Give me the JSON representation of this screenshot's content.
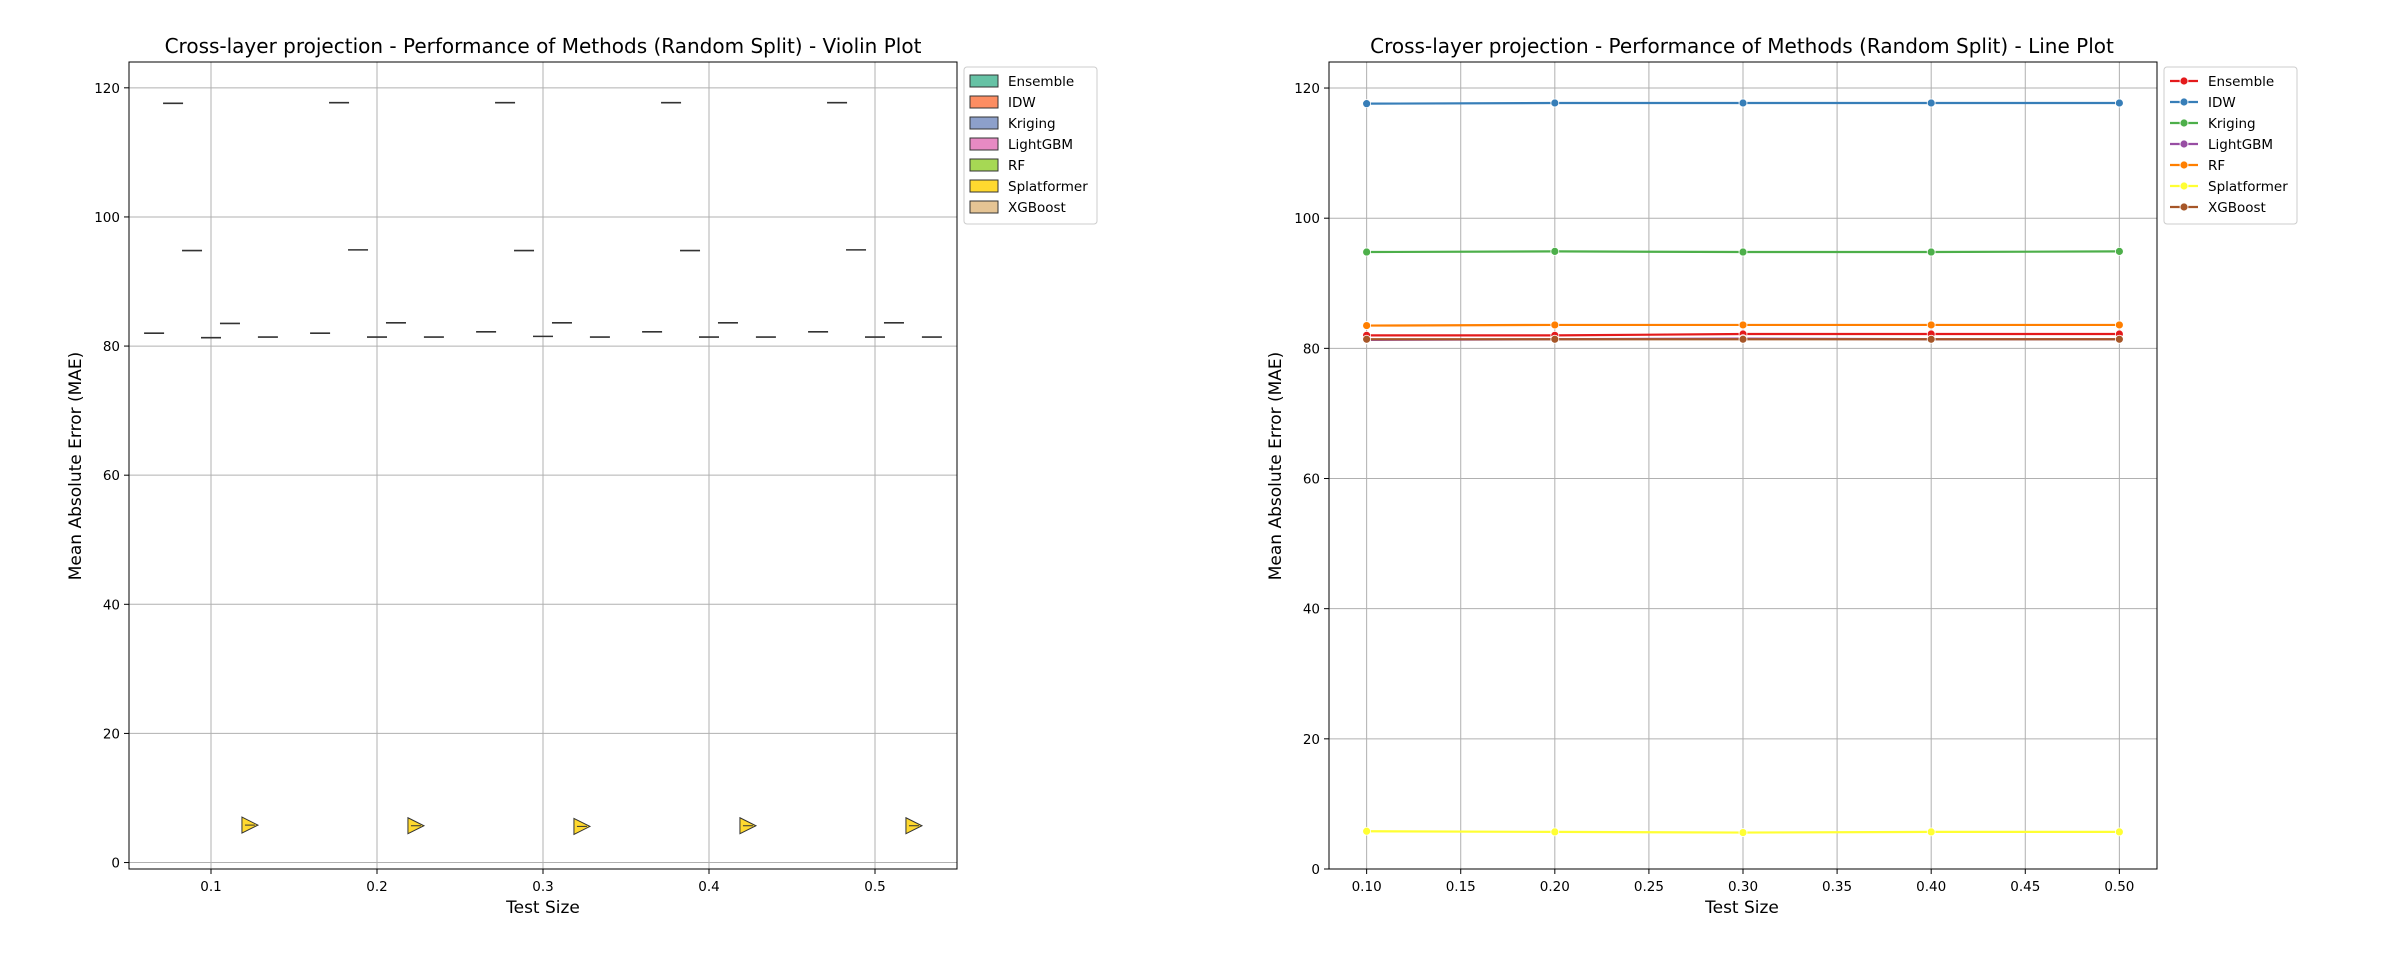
{
  "charts": [
    {
      "type": "violin",
      "title": "Cross-layer projection - Performance of Methods (Random Split) - Violin Plot",
      "xlabel": "Test Size",
      "ylabel": "Mean Absolute Error (MAE)",
      "categories": [
        "0.1",
        "0.2",
        "0.3",
        "0.4",
        "0.5"
      ],
      "xticks": [
        "0.1",
        "0.2",
        "0.3",
        "0.4",
        "0.5"
      ],
      "yticks": [
        "0",
        "20",
        "40",
        "60",
        "80",
        "100",
        "120"
      ],
      "ylim": [
        -1,
        124
      ],
      "grid": true,
      "legend_position": "outside-top-right",
      "series": [
        {
          "name": "Ensemble",
          "color": "#66c2a5",
          "values": [
            82.0,
            82.0,
            82.2,
            82.2,
            82.2
          ]
        },
        {
          "name": "IDW",
          "color": "#fc8d62",
          "values": [
            117.6,
            117.7,
            117.7,
            117.7,
            117.7
          ]
        },
        {
          "name": "Kriging",
          "color": "#8da0cb",
          "values": [
            94.8,
            94.9,
            94.8,
            94.8,
            94.9
          ]
        },
        {
          "name": "LightGBM",
          "color": "#e78ac3",
          "values": [
            81.3,
            81.4,
            81.5,
            81.4,
            81.4
          ]
        },
        {
          "name": "RF",
          "color": "#a6d854",
          "values": [
            83.5,
            83.6,
            83.6,
            83.6,
            83.6
          ]
        },
        {
          "name": "Splatformer",
          "color": "#ffd92f",
          "values": [
            5.8,
            5.7,
            5.6,
            5.7,
            5.7
          ]
        },
        {
          "name": "XGBoost",
          "color": "#e5c494",
          "values": [
            81.4,
            81.4,
            81.4,
            81.4,
            81.4
          ]
        }
      ]
    },
    {
      "type": "line",
      "title": "Cross-layer projection - Performance of Methods (Random Split) - Line Plot",
      "xlabel": "Test Size",
      "ylabel": "Mean Absolute Error (MAE)",
      "x": [
        0.1,
        0.2,
        0.3,
        0.4,
        0.5
      ],
      "xticks": [
        "0.10",
        "0.15",
        "0.20",
        "0.25",
        "0.30",
        "0.35",
        "0.40",
        "0.45",
        "0.50"
      ],
      "yticks": [
        "0",
        "20",
        "40",
        "60",
        "80",
        "100",
        "120"
      ],
      "xlim": [
        0.08,
        0.52
      ],
      "ylim": [
        0,
        124
      ],
      "grid": true,
      "legend_position": "outside-top-right",
      "series": [
        {
          "name": "Ensemble",
          "color": "#e41a1c",
          "values": [
            82.0,
            82.0,
            82.2,
            82.2,
            82.2
          ]
        },
        {
          "name": "IDW",
          "color": "#377eb8",
          "values": [
            117.6,
            117.7,
            117.7,
            117.7,
            117.7
          ]
        },
        {
          "name": "Kriging",
          "color": "#4daf4a",
          "values": [
            94.8,
            94.9,
            94.8,
            94.8,
            94.9
          ]
        },
        {
          "name": "LightGBM",
          "color": "#984ea3",
          "values": [
            81.3,
            81.4,
            81.5,
            81.4,
            81.4
          ]
        },
        {
          "name": "RF",
          "color": "#ff7f00",
          "values": [
            83.5,
            83.6,
            83.6,
            83.6,
            83.6
          ]
        },
        {
          "name": "Splatformer",
          "color": "#ffff33",
          "values": [
            5.8,
            5.7,
            5.6,
            5.7,
            5.7
          ]
        },
        {
          "name": "XGBoost",
          "color": "#a65628",
          "values": [
            81.4,
            81.4,
            81.4,
            81.4,
            81.4
          ]
        }
      ]
    }
  ]
}
